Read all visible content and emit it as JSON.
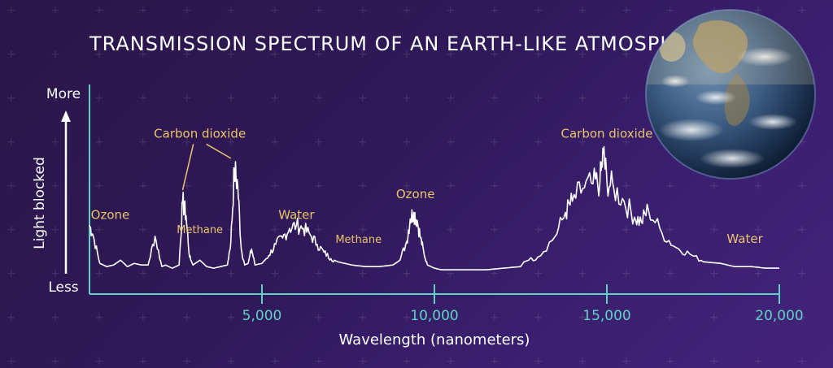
{
  "chart_data": {
    "type": "line",
    "title": "TRANSMISSION SPECTRUM OF AN EARTH-LIKE ATMOSPHERE",
    "xlabel": "Wavelength (nanometers)",
    "ylabel": "Light blocked",
    "y_top_label": "More",
    "y_bottom_label": "Less",
    "xlim": [
      0,
      20000
    ],
    "ylim": [
      0,
      1
    ],
    "x_ticks": [
      5000,
      10000,
      15000,
      20000
    ],
    "x_tick_labels": [
      "5,000",
      "10,000",
      "15,000",
      "20,000"
    ],
    "grid": false,
    "series": [
      {
        "x": [
          0,
          100,
          300,
          500,
          700,
          900,
          1100,
          1300,
          1500,
          1700,
          1900,
          2100,
          2200,
          2400,
          2600,
          2700,
          2800,
          2900,
          3000,
          3200,
          3400,
          3600,
          3800,
          4000,
          4100,
          4200,
          4300,
          4400,
          4500,
          4600,
          4700,
          4800,
          5000,
          5200,
          5400,
          5600,
          5800,
          6000,
          6200,
          6400,
          6600,
          6800,
          7000,
          7200,
          7600,
          8000,
          8400,
          8800,
          9000,
          9200,
          9300,
          9400,
          9500,
          9600,
          9700,
          9800,
          10000,
          10200,
          10600,
          11000,
          11500,
          12000,
          12500,
          12600,
          13000,
          13500,
          13800,
          14000,
          14300,
          14600,
          14800,
          14900,
          15000,
          15200,
          15500,
          15800,
          16000,
          16200,
          16600,
          17000,
          17400,
          17800,
          18300,
          18700,
          19200,
          19600,
          20000
        ],
        "y": [
          0.3,
          0.24,
          0.06,
          0.04,
          0.05,
          0.08,
          0.04,
          0.06,
          0.05,
          0.05,
          0.23,
          0.04,
          0.05,
          0.03,
          0.05,
          0.45,
          0.36,
          0.1,
          0.05,
          0.08,
          0.04,
          0.03,
          0.04,
          0.05,
          0.2,
          0.65,
          0.55,
          0.15,
          0.05,
          0.06,
          0.15,
          0.05,
          0.06,
          0.11,
          0.18,
          0.22,
          0.28,
          0.3,
          0.28,
          0.24,
          0.18,
          0.13,
          0.09,
          0.07,
          0.05,
          0.04,
          0.04,
          0.05,
          0.08,
          0.2,
          0.34,
          0.38,
          0.33,
          0.22,
          0.12,
          0.05,
          0.03,
          0.02,
          0.02,
          0.02,
          0.02,
          0.03,
          0.04,
          0.07,
          0.1,
          0.23,
          0.38,
          0.45,
          0.53,
          0.56,
          0.57,
          0.75,
          0.58,
          0.53,
          0.45,
          0.35,
          0.32,
          0.4,
          0.25,
          0.16,
          0.12,
          0.07,
          0.06,
          0.04,
          0.04,
          0.03,
          0.03
        ]
      }
    ],
    "annotations": [
      {
        "text": "Carbon dioxide",
        "x": 3200,
        "y": 0.85
      },
      {
        "text": "Ozone",
        "x": 600,
        "y": 0.34
      },
      {
        "text": "Methane",
        "x": 3200,
        "y": 0.25
      },
      {
        "text": "Water",
        "x": 6000,
        "y": 0.34
      },
      {
        "text": "Methane",
        "x": 7800,
        "y": 0.19
      },
      {
        "text": "Ozone",
        "x": 9450,
        "y": 0.47
      },
      {
        "text": "Carbon dioxide",
        "x": 15000,
        "y": 0.85
      },
      {
        "text": "Water",
        "x": 19000,
        "y": 0.19
      }
    ],
    "colors": {
      "line": "#ffffff",
      "axis": "#5fd2c6",
      "label": "#e8c46c"
    }
  }
}
